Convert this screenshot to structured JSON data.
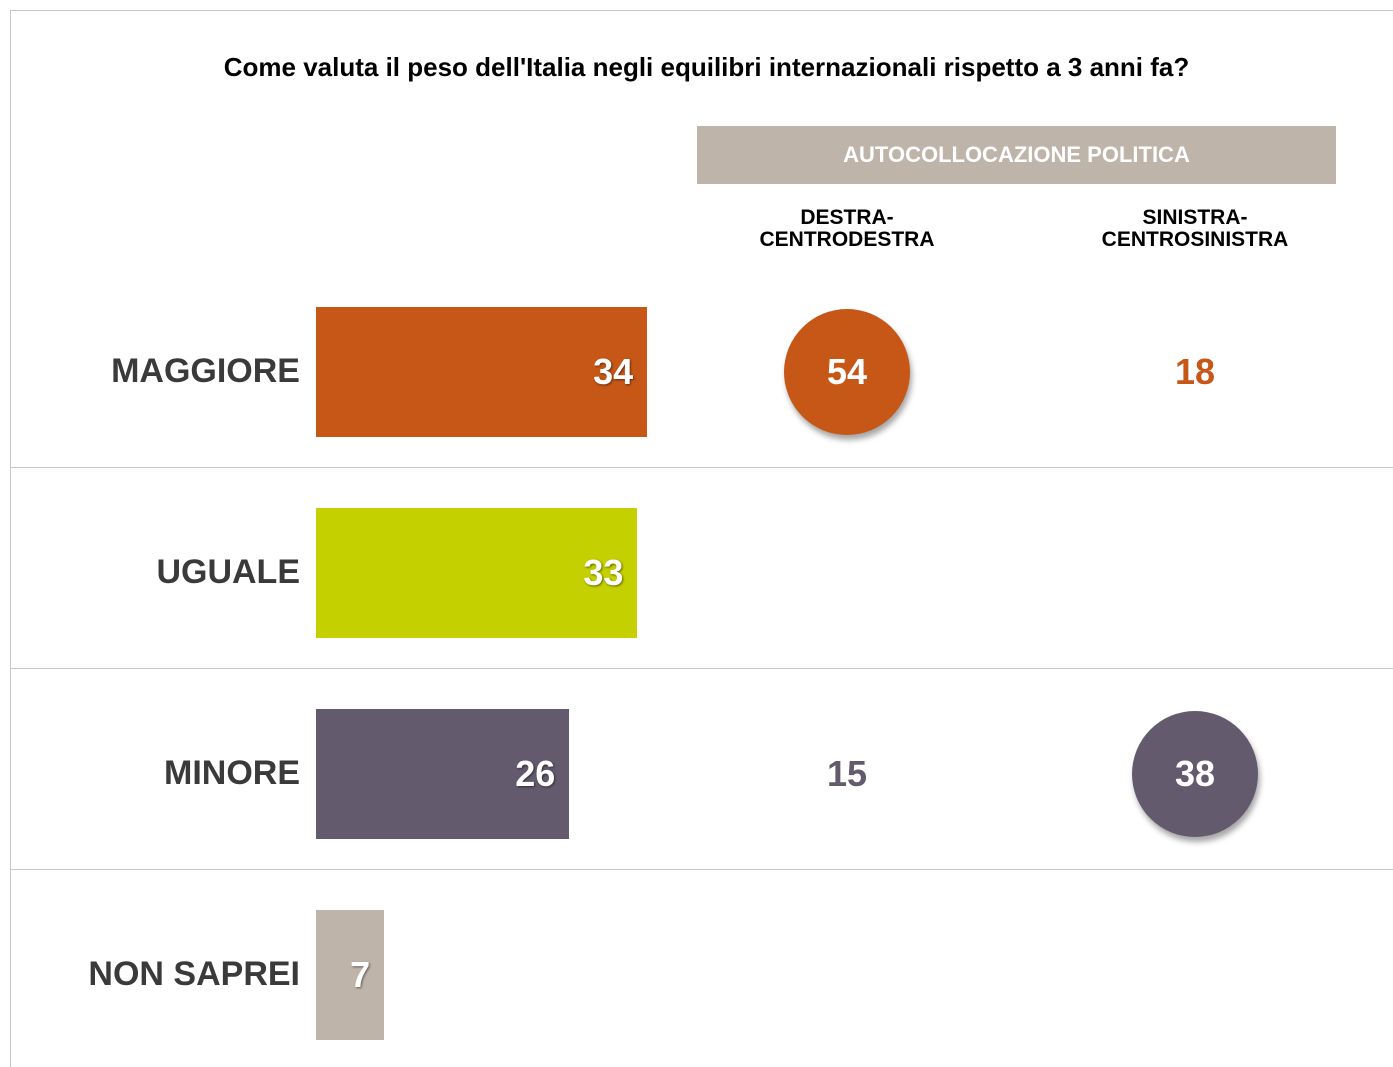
{
  "chart_data": {
    "type": "bar",
    "title": "Come valuta il peso dell'Italia negli equilibri internazionali rispetto a 3 anni fa?",
    "categories": [
      "MAGGIORE",
      "UGUALE",
      "MINORE",
      "NON SAPREI"
    ],
    "values": [
      34,
      33,
      26,
      7
    ],
    "colors": [
      "#c75717",
      "#c5d000",
      "#635a6d",
      "#bfb4aa"
    ],
    "group_header": "AUTOCOLLOCAZIONE POLITICA",
    "columns": [
      {
        "name": "DESTRA-\nCENTRODESTRA",
        "values": [
          54,
          null,
          15,
          null
        ],
        "highlight": [
          true,
          false,
          false,
          false
        ]
      },
      {
        "name": "SINISTRA-\nCENTROSINISTRA",
        "values": [
          18,
          null,
          38,
          null
        ],
        "highlight": [
          false,
          false,
          true,
          false
        ]
      }
    ]
  }
}
